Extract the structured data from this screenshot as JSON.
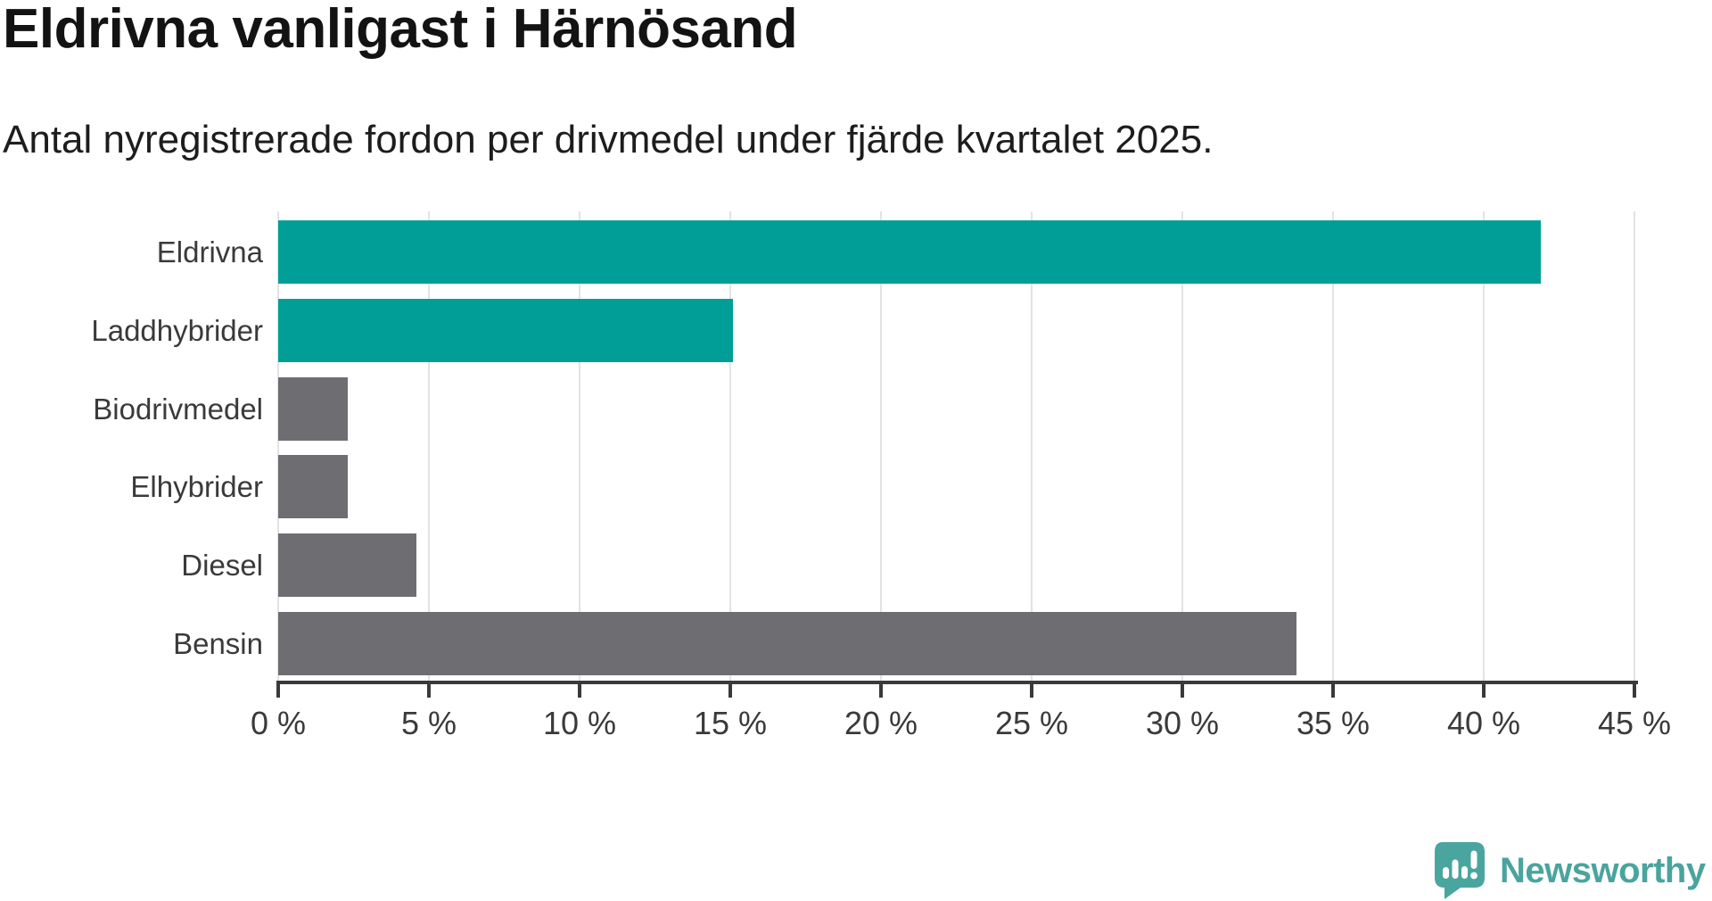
{
  "header": {
    "title": "Eldrivna vanligast i Härnösand",
    "subtitle": "Antal nyregistrerade fordon per drivmedel under fjärde kvartalet 2025."
  },
  "chart_data": {
    "type": "bar",
    "orientation": "horizontal",
    "title": "Eldrivna vanligast i Härnösand",
    "subtitle": "Antal nyregistrerade fordon per drivmedel under fjärde kvartalet 2025.",
    "categories": [
      "Eldrivna",
      "Laddhybrider",
      "Biodrivmedel",
      "Elhybrider",
      "Diesel",
      "Bensin"
    ],
    "values": [
      41.9,
      15.1,
      2.3,
      2.3,
      4.6,
      33.8
    ],
    "unit": "%",
    "xlim": [
      0,
      45
    ],
    "x_ticks": [
      0,
      5,
      10,
      15,
      20,
      25,
      30,
      35,
      40,
      45
    ],
    "x_tick_labels": [
      "0 %",
      "5 %",
      "10 %",
      "15 %",
      "20 %",
      "25 %",
      "30 %",
      "35 %",
      "40 %",
      "45 %"
    ],
    "grid": true,
    "legend": false,
    "bar_colors": [
      "#009e97",
      "#009e97",
      "#6d6d72",
      "#6d6d72",
      "#6d6d72",
      "#6d6d72"
    ],
    "colors": {
      "accent_teal": "#009e97",
      "neutral_gray": "#6d6d72",
      "axis": "#3a3a3a",
      "gridline": "#e3e3e3",
      "label_text": "#3a3a3a"
    }
  },
  "footer": {
    "brand": "Newsworthy",
    "brand_color": "#4aa49e",
    "logo_icon": "newsworthy-speech-bubble-chart-icon"
  }
}
